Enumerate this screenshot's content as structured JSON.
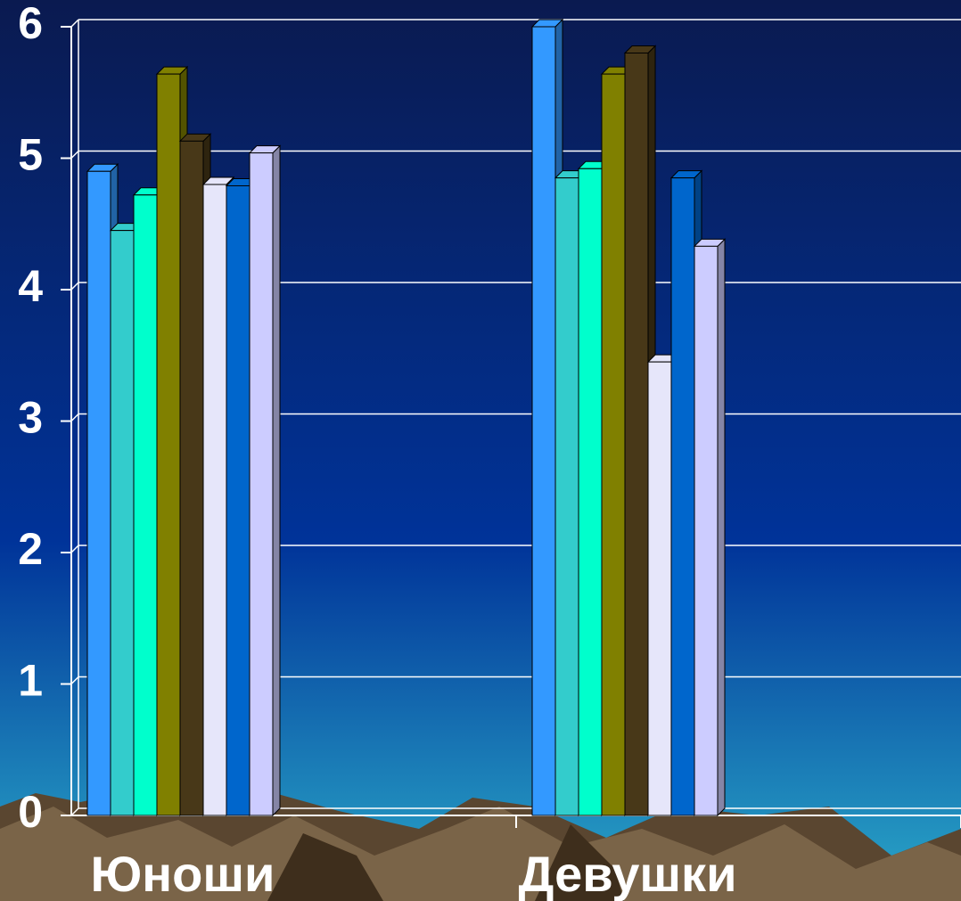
{
  "chart_data": {
    "type": "bar3d",
    "categories": [
      "Юноши",
      "Девушки"
    ],
    "series": [
      {
        "color": "#3399ff",
        "values": [
          4.9,
          6.0
        ]
      },
      {
        "color": "#33cccc",
        "values": [
          4.45,
          4.85
        ]
      },
      {
        "color": "#00ffcc",
        "values": [
          4.72,
          4.92
        ]
      },
      {
        "color": "#808000",
        "values": [
          5.64,
          5.64
        ]
      },
      {
        "color": "#483818",
        "values": [
          5.13,
          5.8
        ]
      },
      {
        "color": "#e6e6fa",
        "values": [
          4.8,
          3.45
        ]
      },
      {
        "color": "#0066cc",
        "values": [
          4.79,
          4.85
        ]
      },
      {
        "color": "#ccccff",
        "values": [
          5.04,
          4.33
        ]
      }
    ],
    "ylim": [
      0,
      6
    ],
    "yticks": [
      0,
      1,
      2,
      3,
      4,
      5,
      6
    ],
    "grid": true
  }
}
